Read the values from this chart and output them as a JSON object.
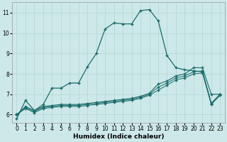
{
  "xlabel": "Humidex (Indice chaleur)",
  "bg_color": "#cde8e8",
  "grid_color": "#b8d8d8",
  "line_color": "#1a6b6b",
  "xlim": [
    -0.5,
    23.5
  ],
  "ylim": [
    5.6,
    11.5
  ],
  "xticks": [
    0,
    1,
    2,
    3,
    4,
    5,
    6,
    7,
    8,
    9,
    10,
    11,
    12,
    13,
    14,
    15,
    16,
    17,
    18,
    19,
    20,
    21,
    22,
    23
  ],
  "yticks": [
    6,
    7,
    8,
    9,
    10,
    11
  ],
  "line1_x": [
    0,
    1,
    2,
    3,
    4,
    5,
    6,
    7,
    8,
    9,
    10,
    11,
    12,
    13,
    14,
    15,
    16,
    17,
    18,
    19,
    20,
    21,
    22,
    23
  ],
  "line1_y": [
    5.8,
    6.7,
    6.2,
    6.5,
    7.3,
    7.3,
    7.55,
    7.55,
    8.35,
    9.0,
    10.2,
    10.5,
    10.45,
    10.45,
    11.1,
    11.15,
    10.6,
    8.9,
    8.3,
    8.2,
    8.15,
    8.1,
    6.55,
    7.0
  ],
  "line2_x": [
    0,
    1,
    2,
    3,
    4,
    5,
    6,
    7,
    8,
    9,
    10,
    11,
    12,
    13,
    14,
    15,
    16,
    17,
    18,
    19,
    20,
    21,
    22,
    23
  ],
  "line2_y": [
    6.0,
    6.4,
    6.2,
    6.4,
    6.45,
    6.5,
    6.5,
    6.5,
    6.55,
    6.6,
    6.65,
    6.7,
    6.75,
    6.8,
    6.9,
    7.05,
    7.5,
    7.65,
    7.9,
    8.0,
    8.3,
    8.3,
    7.0,
    7.0
  ],
  "line3_x": [
    0,
    1,
    2,
    3,
    4,
    5,
    6,
    7,
    8,
    9,
    10,
    11,
    12,
    13,
    14,
    15,
    16,
    17,
    18,
    19,
    20,
    21,
    22,
    23
  ],
  "line3_y": [
    6.0,
    6.35,
    6.15,
    6.35,
    6.4,
    6.45,
    6.45,
    6.45,
    6.5,
    6.55,
    6.6,
    6.65,
    6.7,
    6.75,
    6.85,
    7.0,
    7.35,
    7.55,
    7.8,
    7.9,
    8.1,
    8.15,
    6.55,
    7.0
  ],
  "line4_x": [
    0,
    1,
    2,
    3,
    4,
    5,
    6,
    7,
    8,
    9,
    10,
    11,
    12,
    13,
    14,
    15,
    16,
    17,
    18,
    19,
    20,
    21,
    22,
    23
  ],
  "line4_y": [
    6.0,
    6.3,
    6.1,
    6.3,
    6.35,
    6.4,
    6.4,
    6.4,
    6.45,
    6.5,
    6.55,
    6.6,
    6.65,
    6.7,
    6.8,
    6.95,
    7.2,
    7.45,
    7.7,
    7.8,
    8.0,
    8.05,
    6.5,
    6.95
  ]
}
